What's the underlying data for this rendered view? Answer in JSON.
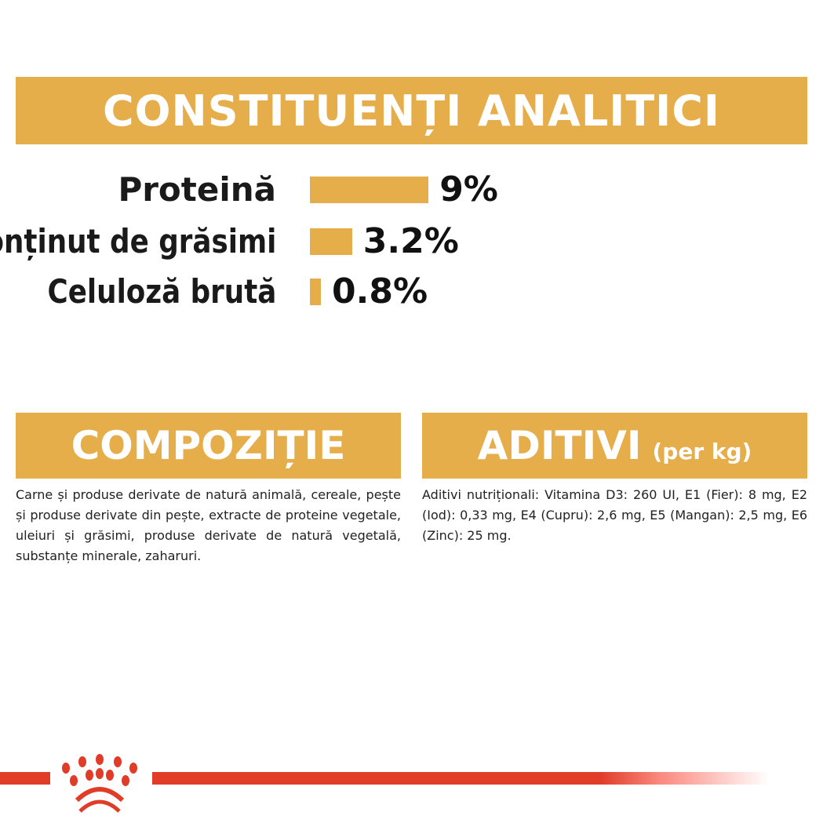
{
  "title": "CONSTITUENȚI ANALITICI",
  "chart_data": {
    "type": "bar",
    "orientation": "horizontal",
    "categories": [
      "Proteină",
      "Conținut de grăsimi",
      "Celuloză brută"
    ],
    "values": [
      9,
      3.2,
      0.8
    ],
    "value_labels": [
      "9%",
      "3.2%",
      "0.8%"
    ],
    "unit": "%",
    "bar_color": "#e6ad4b",
    "grid": false
  },
  "composition": {
    "heading": "COMPOZIȚIE",
    "text": "Carne și produse derivate de natură animală, cereale, pește și produse derivate din pește, extracte de proteine vegetale, uleiuri și grăsimi, produse derivate de natură vegetală, substanțe minerale, zaharuri."
  },
  "additives": {
    "heading": "ADITIVI",
    "heading_suffix": "(per kg)",
    "text": "Aditivi nutriționali: Vitamina D3: 260 UI, E1 (Fier): 8 mg, E2 (Iod): 0,33 mg, E4 (Cupru): 2,6 mg, E5 (Mangan): 2,5 mg, E6 (Zinc): 25 mg."
  },
  "colors": {
    "accent": "#e6ad4b",
    "brand_red": "#e03c28"
  },
  "logo": "royal-canin-crown-logo"
}
